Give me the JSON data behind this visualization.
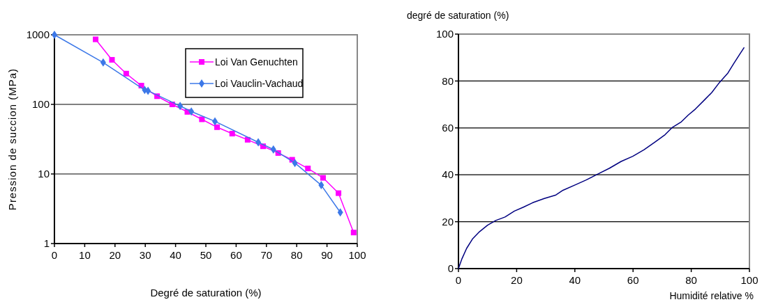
{
  "chart_data": [
    {
      "type": "line",
      "xlabel": "Degré de saturation (%)",
      "ylabel": "Pression de succion (MPa)",
      "log": "y",
      "xlim": [
        0,
        100
      ],
      "ylim": [
        1,
        1000
      ],
      "xticks": [
        0,
        10,
        20,
        30,
        40,
        50,
        60,
        70,
        80,
        90,
        100
      ],
      "yticks": [
        1,
        10,
        100,
        1000
      ],
      "grid": "y",
      "legend": "top right",
      "series": [
        {
          "name": "Loi Van Genuchten",
          "color": "#ff00ff",
          "marker": "square",
          "x": [
            13.6,
            19,
            23.7,
            28.7,
            33.9,
            38.9,
            43.9,
            48.7,
            53.7,
            58.7,
            63.8,
            68.9,
            73.9,
            78.5,
            83.7,
            88.7,
            93.8,
            98.8
          ],
          "values": [
            860,
            437,
            277,
            186,
            131,
            100,
            78,
            61,
            47,
            38,
            31,
            25,
            20,
            16,
            12,
            8.8,
            5.3,
            1.44
          ]
        },
        {
          "name": "Loi Vauclin-Vachaud",
          "color": "#3c78e8",
          "marker": "diamond",
          "x": [
            0,
            16.1,
            29.8,
            30.9,
            41.5,
            45.2,
            53,
            67.3,
            72.3,
            79.4,
            88.1,
            94.4
          ],
          "values": [
            1000,
            400,
            161,
            157,
            95,
            79,
            57,
            28.5,
            22.5,
            14.4,
            6.9,
            2.8
          ]
        }
      ]
    },
    {
      "type": "line",
      "xlabel": "Humidité relative %",
      "ylabel": "degré de saturation (%)",
      "xlim": [
        0,
        100
      ],
      "ylim": [
        0,
        100
      ],
      "xticks": [
        0,
        20,
        40,
        60,
        80,
        100
      ],
      "yticks": [
        0,
        20,
        40,
        60,
        80,
        100
      ],
      "grid": "y",
      "legend": false,
      "series": [
        {
          "color": "#000080",
          "marker": "none",
          "x": [
            0,
            1.2,
            2.8,
            4.8,
            7.2,
            10,
            12.8,
            16,
            19.2,
            22.3,
            25.5,
            29.5,
            33.5,
            35.9,
            40.3,
            43.9,
            47.9,
            51.9,
            55.9,
            59.9,
            63.8,
            67.8,
            71,
            73.4,
            76.6,
            79,
            81.4,
            84.6,
            87,
            89.4,
            92.6,
            94.6,
            96.6,
            98.2
          ],
          "values": [
            0,
            4.2,
            8.6,
            12.6,
            15.7,
            18.5,
            20.5,
            22,
            24.5,
            26.2,
            28.1,
            29.9,
            31.4,
            33.4,
            35.8,
            37.8,
            40.3,
            42.8,
            45.7,
            47.9,
            50.7,
            54.2,
            57.1,
            60.1,
            62.6,
            65.5,
            68,
            72,
            75,
            78.9,
            83.4,
            87.4,
            91.3,
            94.3
          ]
        }
      ]
    }
  ]
}
